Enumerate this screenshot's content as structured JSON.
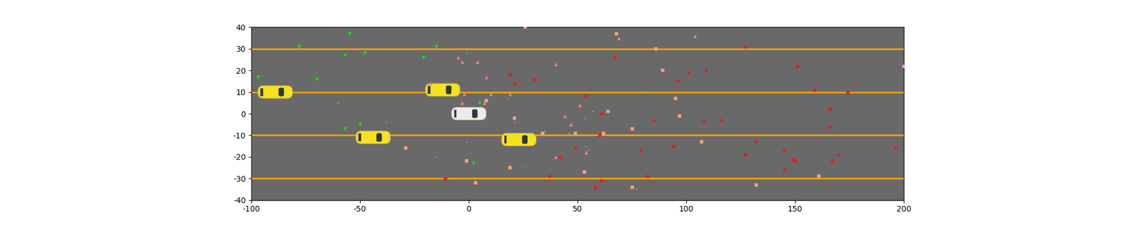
{
  "chart_data": {
    "type": "scatter",
    "xlim": [
      -100,
      200
    ],
    "ylim": [
      -40,
      40
    ],
    "xticks": [
      -100,
      -50,
      0,
      50,
      100,
      150,
      200
    ],
    "yticks": [
      -40,
      -30,
      -20,
      -10,
      0,
      10,
      20,
      30,
      40
    ],
    "grid": false,
    "series": [
      {
        "type": "hline",
        "color": "orange",
        "values": [
          30,
          10,
          -10,
          -30
        ]
      },
      {
        "type": "car",
        "colors": [
          "#f5e11c",
          "#f5e11c",
          "#ebebeb",
          "#f5e11c",
          "#f5e11c"
        ],
        "x": [
          -89,
          -12,
          0,
          -44,
          23
        ],
        "y": [
          10,
          11,
          0,
          -11,
          -12
        ]
      },
      {
        "type": "scatter",
        "color": "#00ee00",
        "marker": "v",
        "x": [
          -97,
          -78,
          -55,
          -57,
          -48,
          -70,
          -21,
          -15,
          -57,
          -50,
          5,
          2
        ],
        "y": [
          17,
          31,
          37,
          27,
          28,
          16,
          26,
          31,
          -7,
          -5,
          5,
          -23
        ]
      },
      {
        "type": "scatter",
        "color": "#f08080",
        "marker": "^",
        "x": [
          -5,
          -3,
          4,
          8,
          -18,
          -2,
          10,
          19,
          -3,
          7,
          40,
          44,
          47,
          51,
          54,
          40,
          69,
          104
        ],
        "y": [
          26,
          24,
          24,
          17,
          14,
          9,
          9,
          9,
          5,
          5,
          23,
          -1,
          -5,
          4,
          -18,
          -20,
          35,
          36
        ]
      },
      {
        "type": "scatter",
        "color": "#ffa07a",
        "marker": "s",
        "x": [
          26,
          68,
          86,
          89,
          95,
          97,
          107,
          64,
          62,
          75,
          49,
          34,
          21,
          8,
          -29,
          -1,
          3,
          19,
          53,
          75,
          132,
          161,
          200
        ],
        "y": [
          40,
          37,
          30,
          20,
          7,
          -1,
          -13,
          1,
          -9,
          -7,
          -9,
          -9,
          -2,
          6,
          -16,
          -22,
          -32,
          -25,
          -27,
          -34,
          -33,
          -29,
          22
        ]
      },
      {
        "type": "scatter",
        "color": "#dd2222",
        "marker": "o",
        "x": [
          -11,
          19,
          21,
          30,
          67,
          54,
          61,
          60,
          49,
          42,
          37,
          58,
          61,
          82,
          79,
          85,
          94,
          96,
          101,
          109,
          108,
          116,
          127,
          127,
          132,
          145,
          145,
          149,
          150,
          151,
          159,
          166,
          166,
          167,
          170,
          174,
          196
        ],
        "y": [
          -30,
          18,
          14,
          16,
          26,
          8,
          0,
          -10,
          -16,
          -20,
          -29,
          -34,
          -31,
          -29,
          -17,
          -3,
          -15,
          15,
          19,
          20,
          -4,
          -3,
          31,
          -19,
          -13,
          -17,
          -26,
          -21,
          -22,
          22,
          11,
          2,
          -6,
          -22,
          -19,
          10,
          -16
        ]
      },
      {
        "type": "scatter",
        "color": "#87ceeb",
        "marker": ".",
        "x": [
          -1,
          -60,
          -38,
          -1,
          -15,
          18,
          21,
          26,
          35,
          46,
          53,
          54,
          55,
          57,
          79,
          77
        ],
        "y": [
          28,
          5,
          -4,
          -13,
          -20,
          7,
          -4,
          -25,
          -8,
          -9,
          -2,
          -15,
          -17,
          1,
          10,
          -35
        ]
      }
    ]
  }
}
